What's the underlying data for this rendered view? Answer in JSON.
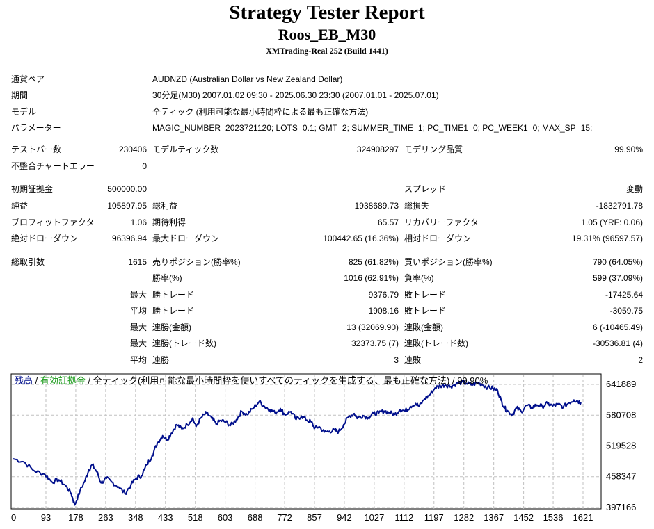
{
  "header": {
    "title": "Strategy Tester Report",
    "subtitle": "Roos_EB_M30",
    "server": "XMTrading-Real 252 (Build 1441)"
  },
  "settings": [
    {
      "label": "通貨ペア",
      "value": "AUDNZD (Australian Dollar vs New Zealand Dollar)"
    },
    {
      "label": "期間",
      "value": "30分足(M30) 2007.01.02 09:30 - 2025.06.30 23:30 (2007.01.01 - 2025.07.01)"
    },
    {
      "label": "モデル",
      "value": "全ティック (利用可能な最小時間枠による最も正確な方法)"
    },
    {
      "label": "パラメーター",
      "value": "MAGIC_NUMBER=2023721120; LOTS=0.1; GMT=2; SUMMER_TIME=1; PC_TIME1=0; PC_WEEK1=0; MAX_SP=15;"
    }
  ],
  "stats": {
    "bars_label": "テストバー数",
    "bars": "230406",
    "ticks_label": "モデルティック数",
    "ticks": "324908297",
    "quality_label": "モデリング品質",
    "quality": "99.90%",
    "mismatch_label": "不整合チャートエラー",
    "mismatch": "0",
    "deposit_label": "初期証拠金",
    "deposit": "500000.00",
    "spread_label": "スプレッド",
    "spread": "変動",
    "net_label": "純益",
    "net": "105897.95",
    "gross_profit_label": "総利益",
    "gross_profit": "1938689.73",
    "gross_loss_label": "総損失",
    "gross_loss": "-1832791.78",
    "pf_label": "プロフィットファクタ",
    "pf": "1.06",
    "expected_label": "期待利得",
    "expected": "65.57",
    "recovery_label": "リカバリーファクタ",
    "recovery": "1.05 (YRF: 0.06)",
    "abs_dd_label": "絶対ドローダウン",
    "abs_dd": "96396.94",
    "max_dd_label": "最大ドローダウン",
    "max_dd": "100442.65 (16.36%)",
    "rel_dd_label": "相対ドローダウン",
    "rel_dd": "19.31% (96597.57)",
    "total_trades_label": "総取引数",
    "total_trades": "1615",
    "short_label": "売りポジション(勝率%)",
    "short": "825 (61.82%)",
    "long_label": "買いポジション(勝率%)",
    "long": "790 (64.05%)",
    "win_rate_label": "勝率(%)",
    "win_rate": "1016 (62.91%)",
    "loss_rate_label": "負率(%)",
    "loss_rate": "599 (37.09%)",
    "largest_prefix": "最大",
    "largest_win_label": "勝トレード",
    "largest_win": "9376.79",
    "largest_loss_label": "敗トレード",
    "largest_loss": "-17425.64",
    "average_prefix": "平均",
    "avg_win_label": "勝トレード",
    "avg_win": "1908.16",
    "avg_loss_label": "敗トレード",
    "avg_loss": "-3059.75",
    "max_consec_prefix": "最大",
    "max_consec_wins_label": "連勝(金額)",
    "max_consec_wins": "13 (32069.90)",
    "max_consec_losses_label": "連敗(金額)",
    "max_consec_losses": "6 (-10465.49)",
    "max_profit_prefix": "最大",
    "max_consec_profit_label": "連勝(トレード数)",
    "max_consec_profit": "32373.75 (7)",
    "max_consec_loss_label": "連敗(トレード数)",
    "max_consec_loss": "-30536.81 (4)",
    "avg_consec_prefix": "平均",
    "avg_consec_wins_label": "連勝",
    "avg_consec_wins": "3",
    "avg_consec_losses_label": "連敗",
    "avg_consec_losses": "2"
  },
  "chart_data": {
    "type": "line",
    "legend": {
      "balance": "残高",
      "sep1": " / ",
      "equity": "有効証拠金",
      "sep2": " / ",
      "model": "全ティック(利用可能な最小時間枠を使いすべてのティックを生成する、最も正確な方法)",
      "sep3": " / ",
      "quality": "99.90%"
    },
    "ylim": [
      397166,
      663000
    ],
    "xlim": [
      0,
      1615
    ],
    "yticks": [
      641889,
      580708,
      519528,
      458347,
      397166
    ],
    "xticks": [
      0,
      93,
      178,
      263,
      348,
      433,
      518,
      603,
      688,
      772,
      857,
      942,
      1027,
      1112,
      1197,
      1282,
      1367,
      1452,
      1536,
      1621
    ],
    "grid": true,
    "colors": {
      "balance": "#000f8c",
      "equity_label": "#1a9a1a",
      "grid": "#c0c0c0"
    },
    "series": [
      {
        "name": "残高",
        "points": [
          [
            0,
            494000
          ],
          [
            30,
            488000
          ],
          [
            60,
            470000
          ],
          [
            90,
            463000
          ],
          [
            110,
            448000
          ],
          [
            130,
            452000
          ],
          [
            150,
            440000
          ],
          [
            165,
            425000
          ],
          [
            175,
            402000
          ],
          [
            190,
            430000
          ],
          [
            205,
            452000
          ],
          [
            215,
            472000
          ],
          [
            225,
            482000
          ],
          [
            238,
            468000
          ],
          [
            250,
            446000
          ],
          [
            265,
            455000
          ],
          [
            280,
            448000
          ],
          [
            300,
            438000
          ],
          [
            318,
            425000
          ],
          [
            335,
            442000
          ],
          [
            350,
            456000
          ],
          [
            365,
            460000
          ],
          [
            380,
            482000
          ],
          [
            395,
            500000
          ],
          [
            410,
            525000
          ],
          [
            425,
            540000
          ],
          [
            438,
            532000
          ],
          [
            450,
            545000
          ],
          [
            465,
            562000
          ],
          [
            480,
            553000
          ],
          [
            495,
            562000
          ],
          [
            510,
            575000
          ],
          [
            520,
            558000
          ],
          [
            535,
            576000
          ],
          [
            550,
            585000
          ],
          [
            565,
            574000
          ],
          [
            577,
            563000
          ],
          [
            590,
            570000
          ],
          [
            605,
            567000
          ],
          [
            618,
            560000
          ],
          [
            635,
            572000
          ],
          [
            650,
            588000
          ],
          [
            665,
            582000
          ],
          [
            682,
            594000
          ],
          [
            700,
            608000
          ],
          [
            715,
            598000
          ],
          [
            730,
            592000
          ],
          [
            745,
            585000
          ],
          [
            760,
            594000
          ],
          [
            772,
            582000
          ],
          [
            790,
            588000
          ],
          [
            805,
            572000
          ],
          [
            820,
            579000
          ],
          [
            835,
            571000
          ],
          [
            848,
            567000
          ],
          [
            858,
            555000
          ],
          [
            870,
            558000
          ],
          [
            885,
            547000
          ],
          [
            900,
            549000
          ],
          [
            915,
            551000
          ],
          [
            925,
            547000
          ],
          [
            940,
            562000
          ],
          [
            955,
            578000
          ],
          [
            970,
            584000
          ],
          [
            980,
            575000
          ],
          [
            995,
            580000
          ],
          [
            1010,
            576000
          ],
          [
            1025,
            584000
          ],
          [
            1040,
            585000
          ],
          [
            1055,
            589000
          ],
          [
            1070,
            586000
          ],
          [
            1085,
            582000
          ],
          [
            1100,
            592000
          ],
          [
            1115,
            589000
          ],
          [
            1130,
            598000
          ],
          [
            1145,
            604000
          ],
          [
            1155,
            598000
          ],
          [
            1170,
            613000
          ],
          [
            1185,
            621000
          ],
          [
            1200,
            635000
          ],
          [
            1215,
            639000
          ],
          [
            1230,
            641000
          ],
          [
            1245,
            638000
          ],
          [
            1260,
            643000
          ],
          [
            1275,
            646000
          ],
          [
            1290,
            644000
          ],
          [
            1305,
            641000
          ],
          [
            1320,
            645000
          ],
          [
            1335,
            641000
          ],
          [
            1350,
            636000
          ],
          [
            1365,
            634000
          ],
          [
            1378,
            630000
          ],
          [
            1388,
            610000
          ],
          [
            1398,
            595000
          ],
          [
            1408,
            588000
          ],
          [
            1420,
            582000
          ],
          [
            1432,
            595000
          ],
          [
            1445,
            588000
          ],
          [
            1460,
            600000
          ],
          [
            1475,
            596000
          ],
          [
            1490,
            601000
          ],
          [
            1505,
            598000
          ],
          [
            1520,
            604000
          ],
          [
            1535,
            599000
          ],
          [
            1550,
            602000
          ],
          [
            1565,
            597000
          ],
          [
            1580,
            605000
          ],
          [
            1595,
            611000
          ],
          [
            1605,
            609000
          ],
          [
            1615,
            606000
          ]
        ]
      }
    ]
  }
}
